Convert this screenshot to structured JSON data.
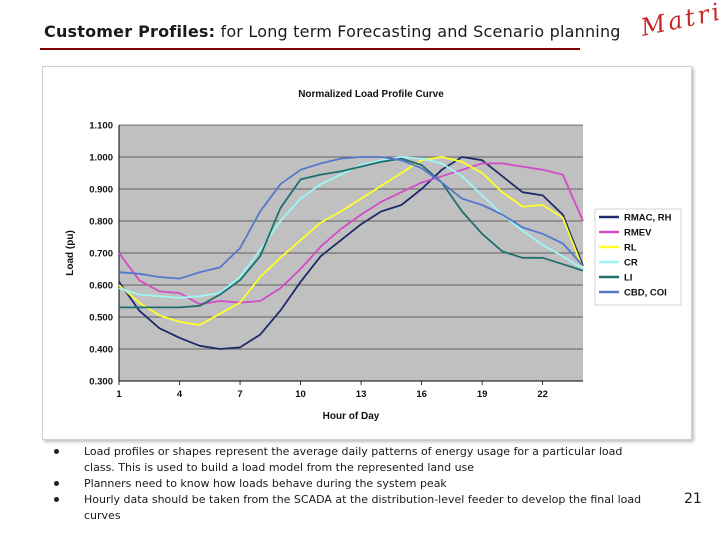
{
  "slide": {
    "title_lead": "Customer Profiles:",
    "title_rest": " for Long term Forecasting and Scenario planning",
    "logo": "Matrica",
    "page_number": "21",
    "bullets": [
      "Load profiles or shapes represent the average daily patterns of energy usage for a particular load class. This is used to build a load model from the represented land use",
      "Planners need to know how loads behave during the system peak",
      "Hourly data should be taken from the SCADA at the distribution-level feeder to develop the final load curves"
    ]
  },
  "chart_data": {
    "type": "line",
    "title": "Normalized Load Profile Curve",
    "xlabel": "Hour of Day",
    "ylabel": "Load (pu)",
    "x": [
      1,
      2,
      3,
      4,
      5,
      6,
      7,
      8,
      9,
      10,
      11,
      12,
      13,
      14,
      15,
      16,
      17,
      18,
      19,
      20,
      21,
      22,
      23,
      24
    ],
    "xticks": [
      "1",
      "4",
      "7",
      "10",
      "13",
      "16",
      "19",
      "22"
    ],
    "yticks": [
      "0.300",
      "0.400",
      "0.500",
      "0.600",
      "0.700",
      "0.800",
      "0.900",
      "1.000",
      "1.100"
    ],
    "xlim": [
      1,
      24
    ],
    "ylim": [
      0.3,
      1.1
    ],
    "grid": true,
    "plot_background": "#c0c0c0",
    "legend_position": "right",
    "series": [
      {
        "name": "RMAC, RH",
        "color": "#1f2a6b",
        "values": [
          0.61,
          0.52,
          0.465,
          0.435,
          0.41,
          0.4,
          0.405,
          0.445,
          0.52,
          0.61,
          0.69,
          0.74,
          0.79,
          0.83,
          0.85,
          0.9,
          0.96,
          1.0,
          0.99,
          0.94,
          0.89,
          0.88,
          0.82,
          0.66
        ]
      },
      {
        "name": "RMEV",
        "color": "#d24bc8",
        "values": [
          0.7,
          0.615,
          0.58,
          0.575,
          0.54,
          0.55,
          0.545,
          0.55,
          0.59,
          0.65,
          0.72,
          0.775,
          0.82,
          0.86,
          0.89,
          0.92,
          0.94,
          0.96,
          0.98,
          0.98,
          0.97,
          0.96,
          0.945,
          0.8
        ]
      },
      {
        "name": "RL",
        "color": "#ffff2a",
        "values": [
          0.6,
          0.545,
          0.505,
          0.485,
          0.475,
          0.51,
          0.545,
          0.625,
          0.685,
          0.74,
          0.795,
          0.83,
          0.87,
          0.91,
          0.95,
          0.99,
          1.0,
          0.985,
          0.95,
          0.89,
          0.845,
          0.85,
          0.81,
          0.65
        ]
      },
      {
        "name": "CR",
        "color": "#9ff6f6",
        "values": [
          0.59,
          0.57,
          0.565,
          0.56,
          0.565,
          0.575,
          0.625,
          0.71,
          0.8,
          0.87,
          0.915,
          0.945,
          0.975,
          0.99,
          1.0,
          0.995,
          0.98,
          0.94,
          0.88,
          0.82,
          0.77,
          0.725,
          0.69,
          0.65
        ]
      },
      {
        "name": "LI",
        "color": "#1f6f6f",
        "values": [
          0.53,
          0.53,
          0.53,
          0.53,
          0.535,
          0.57,
          0.615,
          0.69,
          0.84,
          0.93,
          0.945,
          0.955,
          0.97,
          0.985,
          0.995,
          0.975,
          0.92,
          0.83,
          0.76,
          0.705,
          0.685,
          0.685,
          0.665,
          0.645
        ]
      },
      {
        "name": "CBD, COI",
        "color": "#5577cc",
        "values": [
          0.64,
          0.635,
          0.625,
          0.62,
          0.64,
          0.655,
          0.715,
          0.83,
          0.915,
          0.96,
          0.98,
          0.995,
          1.0,
          1.0,
          0.99,
          0.965,
          0.92,
          0.87,
          0.85,
          0.82,
          0.78,
          0.76,
          0.73,
          0.66
        ]
      }
    ]
  }
}
